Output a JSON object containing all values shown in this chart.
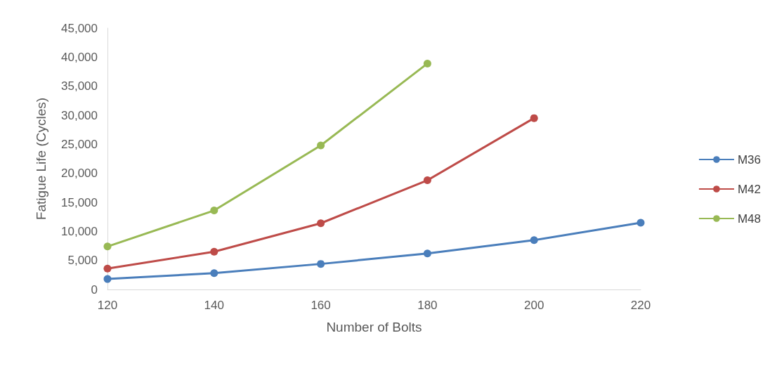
{
  "chart_data": {
    "type": "line",
    "xlabel": "Number of Bolts",
    "ylabel": "Fatigue Life (Cycles)",
    "series": [
      {
        "name": "M36",
        "color": "#4a7ebb",
        "x": [
          120,
          140,
          160,
          180,
          200,
          220
        ],
        "values": [
          1800,
          2800,
          4400,
          6200,
          8500,
          11500
        ]
      },
      {
        "name": "M42",
        "color": "#be4b48",
        "x": [
          120,
          140,
          160,
          180,
          200
        ],
        "values": [
          3600,
          6500,
          11400,
          18800,
          29500
        ]
      },
      {
        "name": "M48",
        "color": "#98b954",
        "x": [
          120,
          140,
          160,
          180
        ],
        "values": [
          7400,
          13600,
          24800,
          38900
        ]
      }
    ],
    "xlim": [
      120,
      220
    ],
    "xticks": [
      120,
      140,
      160,
      180,
      200,
      220
    ],
    "ylim": [
      0,
      45000
    ],
    "yticks": [
      0,
      {
        "value": 5000,
        "label": "5,000"
      },
      {
        "value": 10000,
        "label": "10,000"
      },
      {
        "value": 15000,
        "label": "15,000"
      },
      {
        "value": 20000,
        "label": "20,000"
      },
      {
        "value": 25000,
        "label": "25,000"
      },
      {
        "value": 30000,
        "label": "30,000"
      },
      {
        "value": 35000,
        "label": "35,000"
      },
      {
        "value": 40000,
        "label": "40,000"
      },
      {
        "value": 45000,
        "label": "45,000"
      }
    ],
    "grid": false,
    "legend": "right",
    "marker": "circle",
    "line_style": "solid"
  }
}
